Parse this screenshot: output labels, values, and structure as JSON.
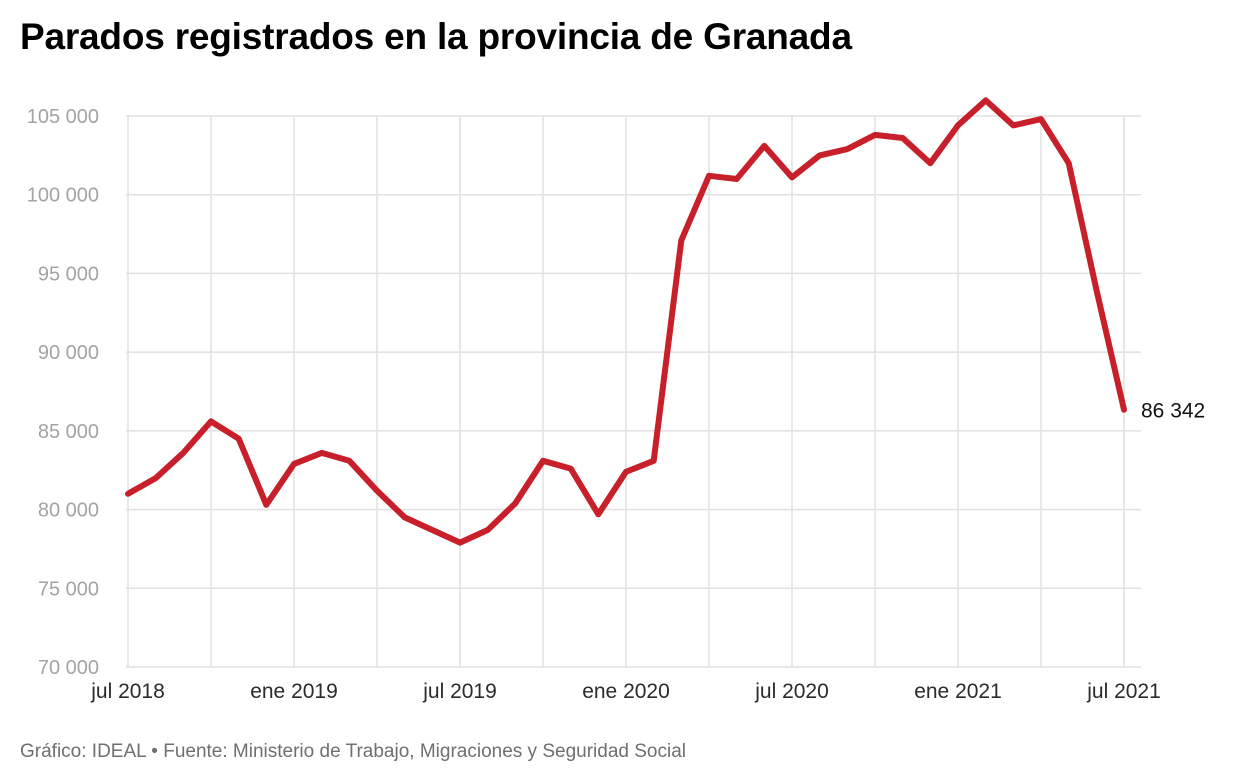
{
  "chart_data": {
    "type": "line",
    "title": "Parados registrados en la provincia de Granada",
    "source": "Gráfico: IDEAL • Fuente: Ministerio de Trabajo, Migraciones y Seguridad Social",
    "xlabel": "",
    "ylabel": "",
    "ylim": [
      70000,
      105000
    ],
    "y_ticks": [
      70000,
      75000,
      80000,
      85000,
      90000,
      95000,
      100000,
      105000
    ],
    "y_tick_labels": [
      "70 000",
      "75 000",
      "80 000",
      "85 000",
      "90 000",
      "95 000",
      "100 000",
      "105 000"
    ],
    "x_ticks": [
      {
        "index": 0,
        "label": "jul 2018"
      },
      {
        "index": 6,
        "label": "ene 2019"
      },
      {
        "index": 12,
        "label": "jul 2019"
      },
      {
        "index": 18,
        "label": "ene 2020"
      },
      {
        "index": 24,
        "label": "jul 2020"
      },
      {
        "index": 30,
        "label": "ene 2021"
      },
      {
        "index": 36,
        "label": "jul 2021"
      }
    ],
    "grid": true,
    "series": [
      {
        "name": "Parados registrados",
        "color": "#c8202b",
        "values": [
          81000,
          82000,
          83600,
          85600,
          84500,
          80300,
          82900,
          83600,
          83100,
          81200,
          79500,
          78700,
          77900,
          78700,
          80400,
          83100,
          82600,
          79700,
          82400,
          83100,
          97100,
          101200,
          101000,
          103100,
          101100,
          102500,
          102900,
          103800,
          103600,
          102000,
          104400,
          106000,
          104400,
          104800,
          102000,
          94000,
          86342
        ]
      }
    ],
    "end_label": "86 342"
  }
}
